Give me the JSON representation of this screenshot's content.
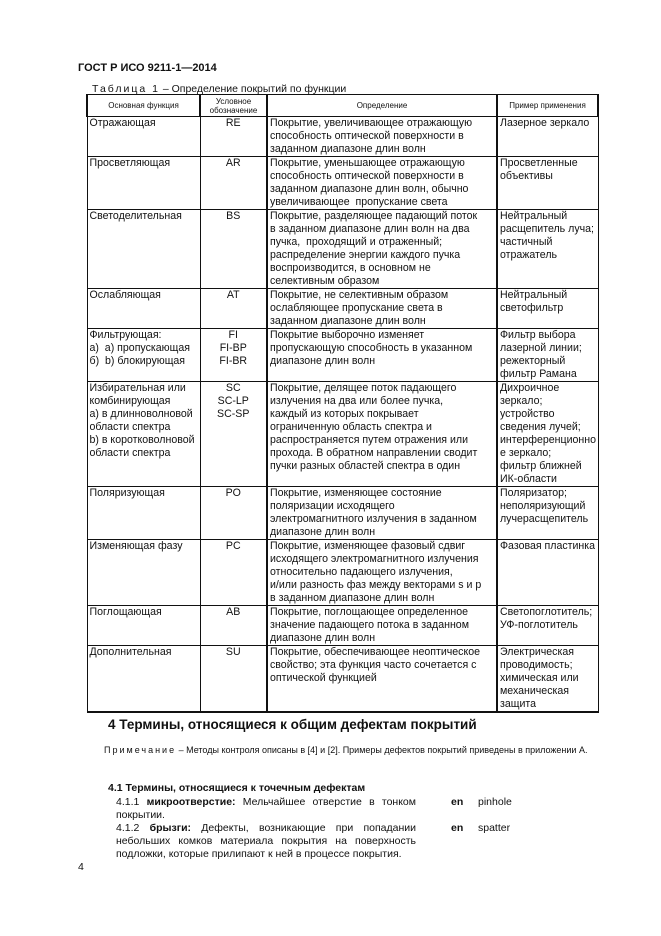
{
  "header": "ГОСТ Р ИСО 9211-1—2014",
  "table": {
    "caption_label": "Таблица 1",
    "caption_text": " – Определение покрытий по функции",
    "columns": [
      "Основная функция",
      "Условное обозначение",
      "Определение",
      "Пример применения"
    ],
    "rows": [
      {
        "func": [
          "Отражающая"
        ],
        "code": [
          "RE"
        ],
        "def": [
          "Покрытие, увеличивающее отражающую",
          "способность оптической поверхности в",
          "заданном диапазоне длин волн"
        ],
        "ex": [
          "Лазерное зеркало"
        ]
      },
      {
        "func": [
          "Просветляющая"
        ],
        "code": [
          "AR"
        ],
        "def": [
          "Покрытие, уменьшающее отражающую",
          "способность оптической поверхности в",
          "заданном диапазоне длин волн, обычно",
          "увеличивающее  пропускание света"
        ],
        "ex": [
          "Просветленные",
          "объективы"
        ]
      },
      {
        "func": [
          "Светоделительная"
        ],
        "code": [
          "BS"
        ],
        "def": [
          "Покрытие, разделяющее падающий поток",
          "в заданном диапазоне длин волн на два",
          "пучка,  проходящий и отраженный;",
          "распределение энергии каждого пучка",
          "воспроизводится, в основном не",
          "селективным образом"
        ],
        "ex": [
          "Нейтральный",
          "расщепитель луча;",
          "частичный",
          "отражатель"
        ]
      },
      {
        "func": [
          "Ослабляющая"
        ],
        "code": [
          "AT"
        ],
        "def": [
          "Покрытие, не селективным образом",
          "ослабляющее пропускание света в",
          "заданном диапазоне длин волн"
        ],
        "ex": [
          "Нейтральный",
          "светофильтр"
        ]
      },
      {
        "func": [
          "Фильтрующая:",
          "а)  a) пропускающая",
          "б)  b) блокирующая"
        ],
        "code": [
          "FI",
          "FI-BP",
          "FI-BR"
        ],
        "def": [
          "Покрытие выборочно изменяет",
          "пропускающую способность в указанном",
          "диапазоне длин волн"
        ],
        "ex": [
          "Фильтр выбора",
          "лазерной линии;",
          "режекторный",
          "фильтр Рамана"
        ]
      },
      {
        "func": [
          "Избирательная или",
          "комбинирующая",
          "а) в длинноволновой",
          "области спектра",
          "b) в коротковолновой",
          "области спектра"
        ],
        "code": [
          "SC",
          "",
          "SC-LP",
          "SC-SP"
        ],
        "def": [
          "Покрытие, делящее поток падающего",
          "излучения на два или более пучка,",
          "каждый из которых покрывает",
          "ограниченную область спектра и",
          "распространяется путем отражения или",
          "прохода. В обратном направлении сводит",
          "пучки разных областей спектра в один"
        ],
        "ex": [
          "Дихроичное",
          "зеркало;",
          "устройство",
          "сведения лучей;",
          "интерференционно",
          "е зеркало;",
          "фильтр ближней",
          "ИК-области"
        ]
      },
      {
        "func": [
          "Поляризующая"
        ],
        "code": [
          "PO"
        ],
        "def": [
          "Покрытие, изменяющее состояние",
          "поляризации исходящего",
          "электромагнитного излучения в заданном",
          "диапазоне длин волн"
        ],
        "ex": [
          "Поляризатор;",
          "неполяризующий",
          "лучерасщепитель"
        ]
      },
      {
        "func": [
          "Изменяющая фазу"
        ],
        "code": [
          "PC"
        ],
        "def": [
          "Покрытие, изменяющее фазовый сдвиг",
          "исходящего электромагнитного излучения",
          "относительно падающего излучения,",
          "и/или разность фаз между векторами s и p",
          "в заданном диапазоне длин волн"
        ],
        "ex": [
          "Фазовая пластинка"
        ]
      },
      {
        "func": [
          "Поглощающая"
        ],
        "code": [
          "AB"
        ],
        "def": [
          "Покрытие, поглощающее определенное",
          "значение падающего потока в заданном",
          "диапазоне длин волн"
        ],
        "ex": [
          "Светопоглотитель;",
          "УФ-поглотитель"
        ]
      },
      {
        "func": [
          "Дополнительная"
        ],
        "code": [
          "SU"
        ],
        "def": [
          "Покрытие, обеспечивающее неоптическое",
          "свойство; эта функция часто сочетается с",
          "оптической функцией"
        ],
        "ex": [
          "Электрическая",
          "проводимость;",
          "химическая или",
          "механическая",
          "защита"
        ]
      }
    ]
  },
  "section4": {
    "title": "4   Термины, относящиеся к общим дефектам покрытий",
    "note_label": "Примечание",
    "note_text": " – Методы контроля описаны в [4] и [2]. Примеры дефектов покрытий приведены в приложении А."
  },
  "section41": {
    "title": "4.1 Термины, относящиеся к точечным дефектам",
    "terms": [
      {
        "num": "4.1.1 ",
        "term": "микроотверстие:",
        "text": " Мельчайшее отверстие в тонком покрытии.",
        "lang": "en",
        "eng": "pinhole"
      },
      {
        "num": "4.1.2 ",
        "term": "брызги:",
        "text": " Дефекты, возникающие при попадании небольших комков материала покрытия на поверхность подложки, которые прилипают к ней в процессе покрытия.",
        "lang": "en",
        "eng": "spatter"
      }
    ]
  },
  "page_number": "4"
}
